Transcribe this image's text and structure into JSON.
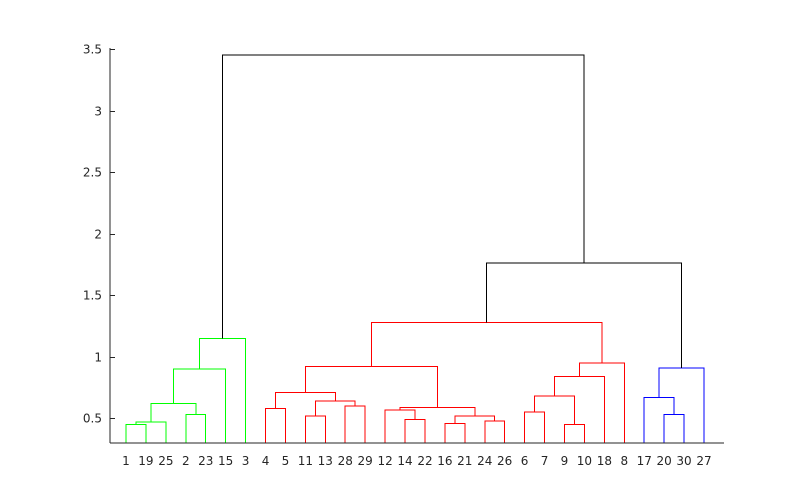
{
  "chart_data": {
    "type": "dendrogram",
    "title": "",
    "xlabel": "",
    "ylabel": "",
    "ylim": [
      0.3,
      3.55
    ],
    "yticks": [
      0.5,
      1,
      1.5,
      2,
      2.5,
      3,
      3.5
    ],
    "leaf_order": [
      "1",
      "19",
      "25",
      "2",
      "23",
      "15",
      "3",
      "4",
      "5",
      "11",
      "13",
      "28",
      "29",
      "12",
      "14",
      "22",
      "16",
      "21",
      "24",
      "26",
      "6",
      "7",
      "9",
      "10",
      "18",
      "8",
      "17",
      "20",
      "30",
      "27"
    ],
    "links": [
      {
        "a": "1",
        "b": "19",
        "h": 0.45,
        "color": "#00ff00"
      },
      {
        "a": "C1",
        "b": "25",
        "h": 0.47,
        "color": "#00ff00"
      },
      {
        "a": "2",
        "b": "23",
        "h": 0.53,
        "color": "#00ff00"
      },
      {
        "a": "C2",
        "b": "C3",
        "h": 0.62,
        "color": "#00ff00"
      },
      {
        "a": "C4",
        "b": "15",
        "h": 0.9,
        "color": "#00ff00"
      },
      {
        "a": "C5",
        "b": "3",
        "h": 1.15,
        "color": "#00ff00"
      },
      {
        "a": "4",
        "b": "5",
        "h": 0.58,
        "color": "#ff0000"
      },
      {
        "a": "11",
        "b": "13",
        "h": 0.52,
        "color": "#ff0000"
      },
      {
        "a": "28",
        "b": "29",
        "h": 0.6,
        "color": "#ff0000"
      },
      {
        "a": "C8",
        "b": "C9",
        "h": 0.64,
        "color": "#ff0000"
      },
      {
        "a": "C7",
        "b": "C10",
        "h": 0.71,
        "color": "#ff0000"
      },
      {
        "a": "14",
        "b": "22",
        "h": 0.49,
        "color": "#ff0000"
      },
      {
        "a": "12",
        "b": "C12",
        "h": 0.57,
        "color": "#ff0000"
      },
      {
        "a": "16",
        "b": "21",
        "h": 0.46,
        "color": "#ff0000"
      },
      {
        "a": "24",
        "b": "26",
        "h": 0.48,
        "color": "#ff0000"
      },
      {
        "a": "C14",
        "b": "C15",
        "h": 0.52,
        "color": "#ff0000"
      },
      {
        "a": "C13",
        "b": "C16",
        "h": 0.59,
        "color": "#ff0000"
      },
      {
        "a": "C11",
        "b": "C17",
        "h": 0.92,
        "color": "#ff0000"
      },
      {
        "a": "6",
        "b": "7",
        "h": 0.55,
        "color": "#ff0000"
      },
      {
        "a": "9",
        "b": "10",
        "h": 0.45,
        "color": "#ff0000"
      },
      {
        "a": "C19",
        "b": "C20",
        "h": 0.68,
        "color": "#ff0000"
      },
      {
        "a": "C21",
        "b": "18",
        "h": 0.84,
        "color": "#ff0000"
      },
      {
        "a": "C22",
        "b": "8",
        "h": 0.95,
        "color": "#ff0000"
      },
      {
        "a": "C18",
        "b": "C23",
        "h": 1.28,
        "color": "#ff0000"
      },
      {
        "a": "20",
        "b": "30",
        "h": 0.53,
        "color": "#0000ff"
      },
      {
        "a": "17",
        "b": "C25",
        "h": 0.67,
        "color": "#0000ff"
      },
      {
        "a": "C26",
        "b": "27",
        "h": 0.91,
        "color": "#0000ff"
      },
      {
        "a": "C24",
        "b": "C27",
        "h": 1.76,
        "color": "#000000"
      },
      {
        "a": "C6",
        "b": "C28",
        "h": 3.45,
        "color": "#000000"
      }
    ]
  }
}
